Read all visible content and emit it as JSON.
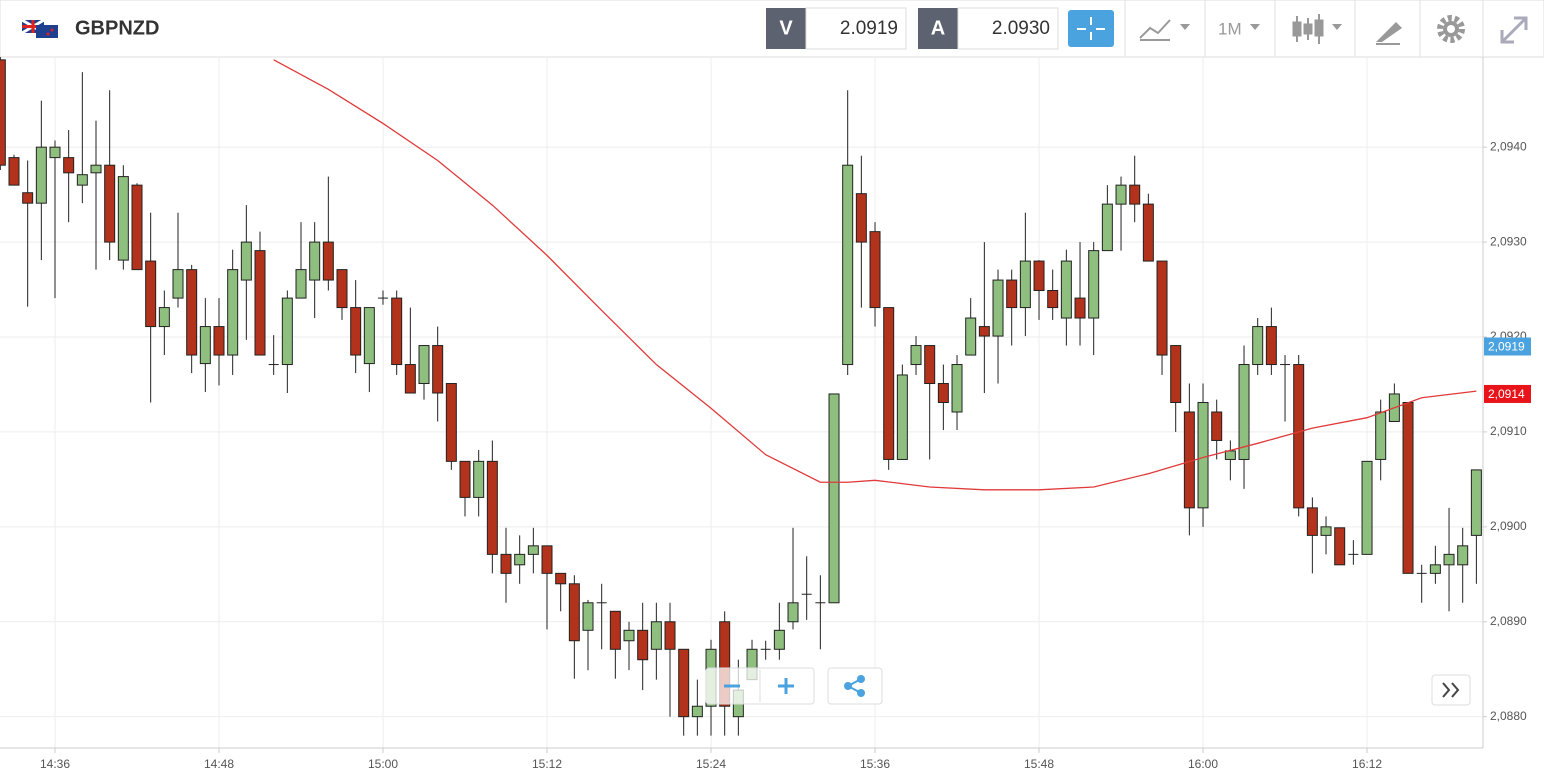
{
  "toolbar": {
    "symbol": "GBPNZD",
    "bid_label": "V",
    "bid": "2.0919",
    "ask_label": "A",
    "ask": "2.0930",
    "timeframe": "1M"
  },
  "chart_data": {
    "type": "candlestick",
    "categories": [
      null,
      null,
      null,
      null,
      "14:36",
      null,
      null,
      null,
      null,
      null,
      null,
      null,
      null,
      null,
      null,
      null,
      "14:48",
      null,
      null,
      null,
      null,
      null,
      null,
      null,
      null,
      null,
      null,
      null,
      "15:00",
      null,
      null,
      null,
      null,
      null,
      null,
      null,
      null,
      null,
      null,
      null,
      "15:12",
      null,
      null,
      null,
      null,
      null,
      null,
      null,
      null,
      null,
      null,
      null,
      "15:24",
      null,
      null,
      null,
      null,
      null,
      null,
      null,
      null,
      null,
      null,
      null,
      "15:36",
      null,
      null,
      null,
      null,
      null,
      null,
      null,
      null,
      null,
      null,
      null,
      "15:48",
      null,
      null,
      null,
      null,
      null,
      null,
      null,
      null,
      null,
      null,
      null,
      "16:00",
      null,
      null,
      null,
      null,
      null,
      null,
      null,
      null,
      null,
      null,
      null,
      "16:12",
      null,
      null,
      null,
      null,
      null,
      null,
      null,
      null
    ],
    "open": [
      2.09492,
      2.09389,
      2.09352,
      2.09341,
      2.09389,
      2.09389,
      2.0936,
      2.09373,
      2.09381,
      2.09281,
      2.0936,
      2.0928,
      2.09211,
      2.09241,
      2.09271,
      2.09172,
      2.09211,
      2.09181,
      2.0926,
      2.09291,
      2.09171,
      2.09171,
      2.09241,
      2.0926,
      2.093,
      2.09271,
      2.09231,
      2.09172,
      2.09241,
      2.09241,
      2.09171,
      2.09151,
      2.09191,
      2.09151,
      2.09069,
      2.09031,
      2.09069,
      2.08971,
      2.0896,
      2.08971,
      2.0898,
      2.08951,
      2.0894,
      2.08891,
      2.0892,
      2.08911,
      2.0888,
      2.08891,
      2.08871,
      2.089,
      2.08871,
      2.088,
      2.08811,
      2.089,
      2.088,
      2.08839,
      2.08871,
      2.08871,
      2.089,
      2.08929,
      2.0892,
      2.0892,
      2.09171,
      2.09351,
      2.09311,
      2.09231,
      2.09071,
      2.09171,
      2.09191,
      2.09151,
      2.09121,
      2.09181,
      2.09211,
      2.09201,
      2.0926,
      2.09231,
      2.0928,
      2.09249,
      2.0922,
      2.09241,
      2.0922,
      2.09291,
      2.0934,
      2.0936,
      2.0934,
      2.0928,
      2.09191,
      2.09121,
      2.0902,
      2.09121,
      2.09071,
      2.09071,
      2.09171,
      2.09211,
      2.09171,
      2.09171,
      2.0902,
      2.08991,
      2.08999,
      2.08971,
      2.08971,
      2.09071,
      2.09111,
      2.09131,
      2.08951,
      2.08951,
      2.0896,
      2.0896,
      2.08991
    ],
    "high": [
      2.09497,
      2.09392,
      2.09386,
      2.09449,
      2.09407,
      2.09418,
      2.09479,
      2.09428,
      2.0946,
      2.09381,
      2.09362,
      2.09331,
      2.09249,
      2.09331,
      2.09276,
      2.09241,
      2.09241,
      2.09292,
      2.09339,
      2.09311,
      2.09202,
      2.09249,
      2.09321,
      2.09321,
      2.09369,
      2.09271,
      2.0926,
      2.09231,
      2.09249,
      2.09249,
      2.09231,
      2.09191,
      2.09211,
      2.09151,
      2.09069,
      2.09081,
      2.09091,
      2.08999,
      2.08991,
      2.08999,
      2.0898,
      2.08951,
      2.08949,
      2.08923,
      2.0894,
      2.08911,
      2.089,
      2.0892,
      2.0892,
      2.0892,
      2.08871,
      2.08839,
      2.08881,
      2.08911,
      2.0886,
      2.08881,
      2.0888,
      2.0892,
      2.08999,
      2.08969,
      2.08949,
      2.0914,
      2.0946,
      2.09391,
      2.09321,
      2.09231,
      2.09171,
      2.09201,
      2.09191,
      2.09171,
      2.09181,
      2.09241,
      2.093,
      2.09271,
      2.09271,
      2.09331,
      2.09281,
      2.09271,
      2.09292,
      2.093,
      2.093,
      2.0936,
      2.09369,
      2.09391,
      2.09351,
      2.0928,
      2.09191,
      2.09151,
      2.09151,
      2.09134,
      2.09091,
      2.09191,
      2.0922,
      2.09231,
      2.09181,
      2.09181,
      2.09031,
      2.09011,
      2.08999,
      2.08986,
      2.09069,
      2.09134,
      2.09151,
      2.09131,
      2.0896,
      2.0898,
      2.0902,
      2.08999,
      2.0906
    ],
    "low": [
      2.09376,
      2.0936,
      2.09232,
      2.09281,
      2.09241,
      2.09321,
      2.09341,
      2.09271,
      2.09281,
      2.09271,
      2.09271,
      2.09131,
      2.09181,
      2.09231,
      2.09162,
      2.09142,
      2.09149,
      2.0916,
      2.09197,
      2.09181,
      2.0916,
      2.09141,
      2.09241,
      2.0922,
      2.09249,
      2.09218,
      2.09162,
      2.09142,
      2.09234,
      2.0916,
      2.09141,
      2.09134,
      2.09111,
      2.0906,
      2.09011,
      2.09011,
      2.08951,
      2.0892,
      2.0894,
      2.08951,
      2.08892,
      2.08911,
      2.0884,
      2.08849,
      2.08871,
      2.0884,
      2.08849,
      2.08828,
      2.08839,
      2.088,
      2.0878,
      2.0878,
      2.0878,
      2.0878,
      2.0878,
      2.08839,
      2.0886,
      2.0886,
      2.08892,
      2.08902,
      2.08871,
      2.0892,
      2.0916,
      2.09231,
      2.09211,
      2.0906,
      2.09071,
      2.0916,
      2.09071,
      2.09102,
      2.09102,
      2.09181,
      2.09141,
      2.09151,
      2.09191,
      2.09201,
      2.09218,
      2.09218,
      2.09191,
      2.09191,
      2.09181,
      2.09291,
      2.09291,
      2.09321,
      2.0928,
      2.0916,
      2.091,
      2.08991,
      2.09,
      2.09071,
      2.09049,
      2.0904,
      2.0916,
      2.0916,
      2.09111,
      2.09011,
      2.08951,
      2.08971,
      2.0896,
      2.0896,
      2.08971,
      2.09049,
      2.09111,
      2.08951,
      2.0892,
      2.0894,
      2.08911,
      2.0892,
      2.0894
    ],
    "close": [
      2.09381,
      2.0936,
      2.09341,
      2.094,
      2.094,
      2.09373,
      2.09371,
      2.09381,
      2.093,
      2.09369,
      2.09271,
      2.09211,
      2.09231,
      2.09271,
      2.09181,
      2.09211,
      2.09181,
      2.09271,
      2.093,
      2.09181,
      2.09171,
      2.09241,
      2.09271,
      2.093,
      2.0926,
      2.09231,
      2.09181,
      2.09231,
      2.09241,
      2.09171,
      2.09141,
      2.09191,
      2.09141,
      2.09069,
      2.09031,
      2.09069,
      2.08971,
      2.08951,
      2.08971,
      2.0898,
      2.08951,
      2.0894,
      2.0888,
      2.0892,
      2.0892,
      2.08871,
      2.08891,
      2.0886,
      2.089,
      2.08871,
      2.088,
      2.08811,
      2.08871,
      2.08811,
      2.08828,
      2.08871,
      2.08871,
      2.08891,
      2.0892,
      2.08929,
      2.0892,
      2.0914,
      2.09381,
      2.093,
      2.09231,
      2.09071,
      2.0916,
      2.09191,
      2.09151,
      2.09131,
      2.09171,
      2.0922,
      2.09201,
      2.0926,
      2.09231,
      2.0928,
      2.09249,
      2.09231,
      2.0928,
      2.0922,
      2.09291,
      2.0934,
      2.0936,
      2.0934,
      2.0928,
      2.09181,
      2.09131,
      2.0902,
      2.09131,
      2.09091,
      2.0908,
      2.09171,
      2.09211,
      2.09171,
      2.09171,
      2.0902,
      2.08991,
      2.09,
      2.0896,
      2.08971,
      2.09069,
      2.09121,
      2.0914,
      2.08951,
      2.08951,
      2.0896,
      2.08971,
      2.0898,
      2.0906
    ],
    "up_color": "#8fbf7f",
    "down_color": "#b3321b",
    "ma": {
      "color": "#e03a3a",
      "x": [
        20,
        24,
        28,
        32,
        36,
        40,
        44,
        48,
        52,
        56,
        60,
        62,
        64,
        68,
        72,
        76,
        80,
        84,
        88,
        92,
        96,
        100,
        104,
        108
      ],
      "values": [
        2.09492,
        2.09461,
        2.09425,
        2.09386,
        2.09339,
        2.09286,
        2.09228,
        2.09171,
        2.09125,
        2.09076,
        2.09047,
        2.09047,
        2.09049,
        2.09042,
        2.09039,
        2.09039,
        2.09042,
        2.09056,
        2.09073,
        2.09088,
        2.09104,
        2.09115,
        2.09136,
        2.09143
      ]
    },
    "markers": [
      {
        "value": 2.0919,
        "label": "2,0919",
        "color": "#4aa3df"
      },
      {
        "value": 2.0914,
        "label": "2,0914",
        "color": "#e8141a"
      }
    ],
    "ylim": [
      2.08767,
      2.09495
    ],
    "yticks": [
      {
        "value": 2.088,
        "label": "2,0880"
      },
      {
        "value": 2.089,
        "label": "2,0890"
      },
      {
        "value": 2.09,
        "label": "2,0900"
      },
      {
        "value": 2.091,
        "label": "2,0910"
      },
      {
        "value": 2.092,
        "label": "2,0920"
      },
      {
        "value": 2.093,
        "label": "2,0930"
      },
      {
        "value": 2.094,
        "label": "2,0940"
      }
    ],
    "grid": true
  }
}
